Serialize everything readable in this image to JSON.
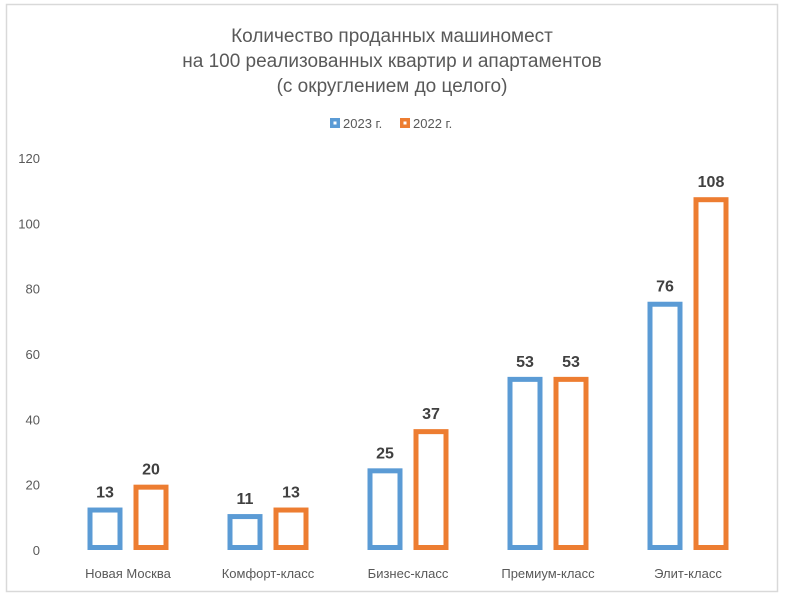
{
  "chart_data": {
    "type": "bar",
    "title_lines": [
      "Количество проданных машиномест",
      "на 100 реализованных квартир и апартаментов",
      "(с округлением до целого)"
    ],
    "categories": [
      "Новая Москва",
      "Комфорт-класс",
      "Бизнес-класс",
      "Премиум-класс",
      "Элит-класс"
    ],
    "series": [
      {
        "name": "2023 г.",
        "color": "#5b9bd5",
        "values": [
          13,
          11,
          25,
          53,
          76
        ]
      },
      {
        "name": "2022 г.",
        "color": "#ed7d31",
        "values": [
          20,
          13,
          37,
          53,
          108
        ]
      }
    ],
    "ylim": [
      0,
      120
    ],
    "yticks": [
      0,
      20,
      40,
      60,
      80,
      100,
      120
    ],
    "grid": false,
    "legend": "top",
    "bar_style": "outline",
    "data_labels": true
  }
}
